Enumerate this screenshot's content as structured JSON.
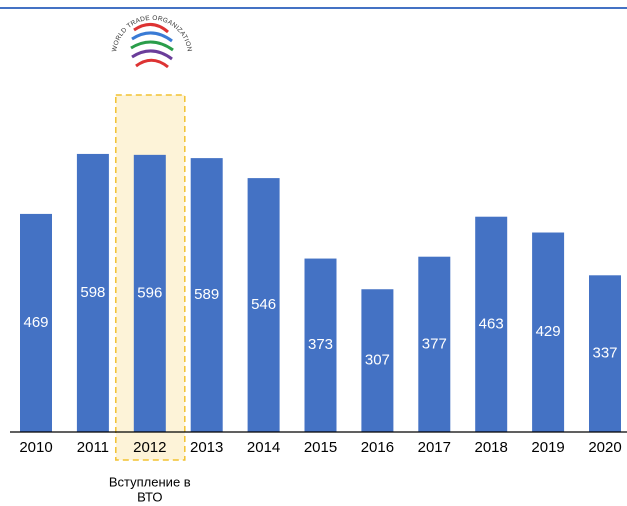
{
  "chart_data": {
    "type": "bar",
    "categories": [
      "2010",
      "2011",
      "2012",
      "2013",
      "2014",
      "2015",
      "2016",
      "2017",
      "2018",
      "2019",
      "2020"
    ],
    "values": [
      469,
      598,
      596,
      589,
      546,
      373,
      307,
      377,
      463,
      429,
      337
    ],
    "color": "#4472c4",
    "highlight_index": 2,
    "annotation": [
      "Вступление в",
      "ВТО"
    ],
    "logo_text": "WORLD TRADE ORGANIZATION"
  }
}
